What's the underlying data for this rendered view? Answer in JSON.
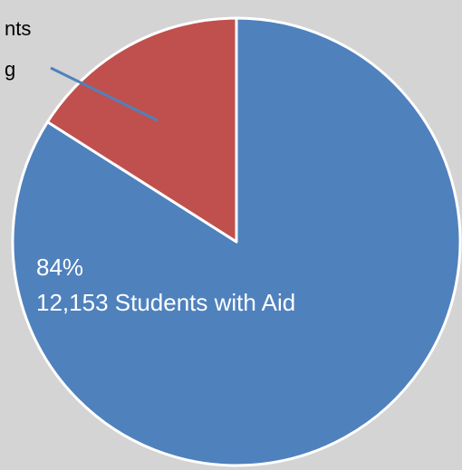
{
  "chart_data": {
    "type": "pie",
    "background": "#d4d4d4",
    "slices": [
      {
        "percent": 84,
        "value": 12153,
        "label_line1": "84%",
        "label_line2": "12,153 Students with Aid",
        "color": "#4f81bd",
        "label_color": "#ffffff"
      },
      {
        "percent": 16,
        "label_partial_line1": "nts",
        "label_partial_line2": "g",
        "color": "#c0504d",
        "label_color": "#000000",
        "leader_line_color": "#4f81bd"
      }
    ]
  }
}
